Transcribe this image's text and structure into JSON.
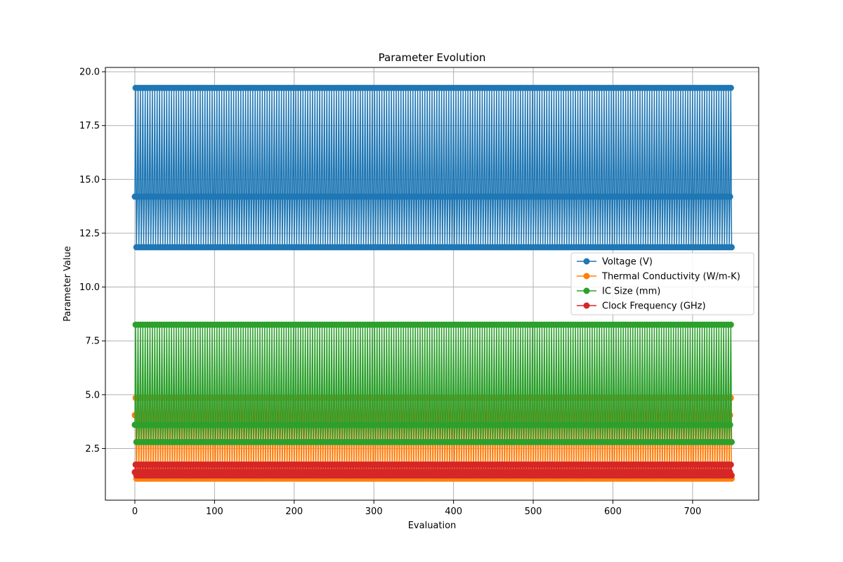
{
  "chart_data": {
    "type": "line",
    "title": "Parameter Evolution",
    "xlabel": "Evaluation",
    "ylabel": "Parameter Value",
    "xlim": [
      -37,
      783
    ],
    "ylim": [
      0.1,
      20.2
    ],
    "x_ticks": [
      0,
      100,
      200,
      300,
      400,
      500,
      600,
      700
    ],
    "y_ticks": [
      2.5,
      5.0,
      7.5,
      10.0,
      12.5,
      15.0,
      17.5,
      20.0
    ],
    "grid": true,
    "legend_position": "center-right",
    "n_points": 750,
    "markers": true,
    "series": [
      {
        "name": "Voltage (V)",
        "color": "#1f77b4",
        "pattern": [
          14.2,
          19.25,
          11.85
        ]
      },
      {
        "name": "Thermal Conductivity (W/m-K)",
        "color": "#ff7f0e",
        "pattern": [
          4.05,
          4.85,
          1.1
        ]
      },
      {
        "name": "IC Size (mm)",
        "color": "#2ca02c",
        "pattern": [
          3.6,
          8.25,
          2.8
        ]
      },
      {
        "name": "Clock Frequency (GHz)",
        "color": "#d62728",
        "pattern": [
          1.4,
          1.75,
          1.25
        ]
      }
    ]
  }
}
